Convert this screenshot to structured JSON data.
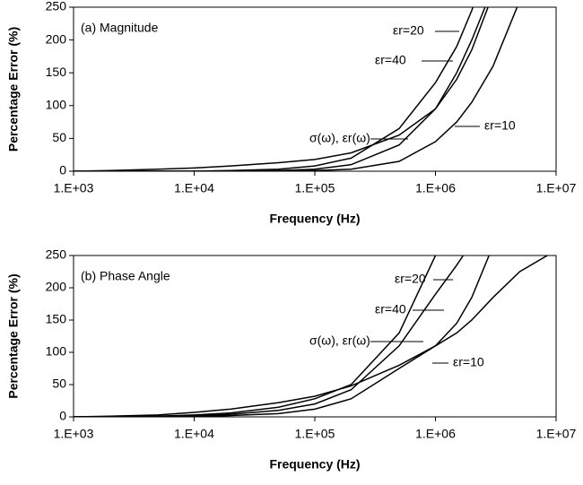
{
  "chart_data": [
    {
      "type": "line",
      "title": "(a) Magnitude",
      "x_label": "Frequency (Hz)",
      "y_label": "Percentage Error (%)",
      "xscale": "log",
      "x": [
        1000,
        2000,
        5000,
        10000,
        20000,
        50000,
        100000,
        200000,
        500000,
        1000000,
        1500000,
        2000000,
        3000000,
        5000000,
        10000000
      ],
      "series": [
        {
          "name": "σ(ω), εr(ω)",
          "color": "#000000",
          "values": [
            0,
            1,
            3,
            5,
            8,
            13,
            18,
            28,
            55,
            95,
            140,
            185,
            270,
            null,
            null
          ]
        },
        {
          "name": "εr=40",
          "color": "#000000",
          "values": [
            0,
            0,
            0,
            0,
            1,
            3,
            8,
            20,
            65,
            135,
            190,
            245,
            340,
            null,
            null
          ]
        },
        {
          "name": "εr=20",
          "color": "#000000",
          "values": [
            0,
            0,
            0,
            0,
            0,
            1,
            3,
            10,
            40,
            95,
            150,
            200,
            280,
            null,
            null
          ]
        },
        {
          "name": "εr=10",
          "color": "#000000",
          "values": [
            0,
            0,
            0,
            0,
            0,
            0,
            1,
            3,
            15,
            45,
            75,
            105,
            160,
            260,
            null
          ]
        }
      ],
      "xlim": [
        1000,
        10000000
      ],
      "ylim": [
        0,
        250
      ],
      "xticks": [
        {
          "value": 1000,
          "label": "1.E+03"
        },
        {
          "value": 10000,
          "label": "1.E+04"
        },
        {
          "value": 100000,
          "label": "1.E+05"
        },
        {
          "value": 1000000,
          "label": "1.E+06"
        },
        {
          "value": 10000000,
          "label": "1.E+07"
        }
      ],
      "yticks": [
        0,
        50,
        100,
        150,
        200,
        250
      ]
    },
    {
      "type": "line",
      "title": "(b) Phase Angle",
      "x_label": "Frequency (Hz)",
      "y_label": "Percentage Error (%)",
      "xscale": "log",
      "x": [
        1000,
        2000,
        5000,
        10000,
        20000,
        50000,
        100000,
        200000,
        500000,
        1000000,
        1500000,
        2000000,
        3000000,
        5000000,
        10000000
      ],
      "series": [
        {
          "name": "σ(ω), εr(ω)",
          "color": "#000000",
          "values": [
            0,
            1,
            3,
            7,
            12,
            22,
            32,
            48,
            80,
            110,
            130,
            150,
            185,
            225,
            258
          ]
        },
        {
          "name": "εr=40",
          "color": "#000000",
          "values": [
            0,
            0,
            1,
            2,
            4,
            10,
            20,
            42,
            110,
            190,
            235,
            270,
            null,
            null,
            null
          ]
        },
        {
          "name": "εr=20",
          "color": "#000000",
          "values": [
            0,
            0,
            1,
            3,
            6,
            15,
            28,
            50,
            130,
            250,
            null,
            null,
            null,
            null,
            null
          ]
        },
        {
          "name": "εr=10",
          "color": "#000000",
          "values": [
            0,
            0,
            0,
            1,
            2,
            5,
            12,
            28,
            75,
            110,
            145,
            185,
            265,
            null,
            null
          ]
        }
      ],
      "xlim": [
        1000,
        10000000
      ],
      "ylim": [
        0,
        250
      ],
      "xticks": [
        {
          "value": 1000,
          "label": "1.E+03"
        },
        {
          "value": 10000,
          "label": "1.E+04"
        },
        {
          "value": 100000,
          "label": "1.E+05"
        },
        {
          "value": 1000000,
          "label": "1.E+06"
        },
        {
          "value": 10000000,
          "label": "1.E+07"
        }
      ],
      "yticks": [
        0,
        50,
        100,
        150,
        200,
        250
      ]
    }
  ]
}
